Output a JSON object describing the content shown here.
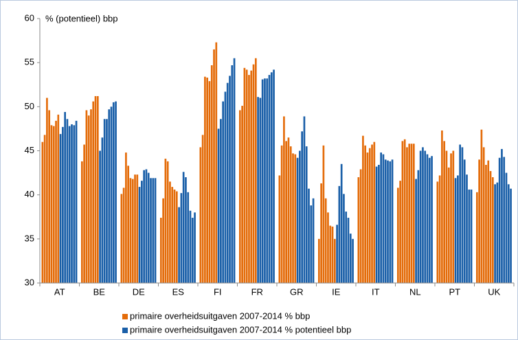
{
  "chart_data": {
    "type": "bar",
    "y_label": "% (potentieel) bbp",
    "categories": [
      "AT",
      "BE",
      "DE",
      "ES",
      "FI",
      "FR",
      "GR",
      "IE",
      "IT",
      "NL",
      "PT",
      "UK"
    ],
    "series": [
      {
        "name": "primaire overheidsuitgaven 2007-2014 % bbp",
        "color": "#e46c0a",
        "values": [
          [
            46.0,
            46.8,
            51.0,
            49.6,
            47.9,
            47.8,
            48.4,
            49.1
          ],
          [
            43.8,
            45.7,
            49.6,
            49.0,
            49.7,
            50.6,
            51.2,
            51.2
          ],
          [
            40.1,
            40.8,
            44.8,
            43.3,
            41.9,
            41.8,
            42.3,
            42.3
          ],
          [
            37.4,
            39.6,
            44.1,
            43.8,
            41.5,
            40.9,
            40.6,
            40.4
          ],
          [
            45.4,
            46.8,
            53.4,
            53.3,
            52.9,
            54.7,
            56.5,
            57.3
          ],
          [
            49.6,
            50.1,
            54.4,
            54.2,
            53.6,
            54.1,
            54.8,
            55.5
          ],
          [
            42.2,
            45.6,
            48.9,
            46.1,
            46.5,
            45.5,
            44.7,
            44.6
          ],
          [
            35.0,
            41.3,
            45.6,
            39.6,
            38.0,
            36.5,
            36.4,
            35.0
          ],
          [
            42.0,
            42.9,
            46.7,
            45.6,
            44.8,
            45.3,
            45.7,
            46.0
          ],
          [
            40.8,
            41.6,
            46.1,
            46.3,
            45.4,
            45.8,
            45.8,
            45.8
          ],
          [
            41.5,
            42.2,
            47.3,
            46.1,
            45.0,
            43.1,
            44.7,
            45.0
          ],
          [
            40.3,
            44.0,
            47.4,
            45.4,
            43.4,
            43.9,
            42.7,
            42.0
          ]
        ]
      },
      {
        "name": "primaire overheidsuitgaven 2007-2014 % potentieel bbp",
        "color": "#1a5fa8",
        "values": [
          [
            46.9,
            47.7,
            49.4,
            48.6,
            47.8,
            48.0,
            47.9,
            48.4
          ],
          [
            45.0,
            46.5,
            48.6,
            48.6,
            49.7,
            50.0,
            50.5,
            50.6
          ],
          [
            40.9,
            41.6,
            42.8,
            42.9,
            42.5,
            41.9,
            41.9,
            41.9
          ],
          [
            38.6,
            40.2,
            42.6,
            42.0,
            40.3,
            38.2,
            37.4,
            38.0
          ],
          [
            47.5,
            48.6,
            50.6,
            51.7,
            52.7,
            53.5,
            54.7,
            55.5
          ],
          [
            51.1,
            51.0,
            53.1,
            53.2,
            53.2,
            53.6,
            53.9,
            54.2
          ],
          [
            44.2,
            45.0,
            47.2,
            48.9,
            45.5,
            40.7,
            38.8,
            39.6
          ],
          [
            36.6,
            41.0,
            43.5,
            40.1,
            38.1,
            37.4,
            35.6,
            35.0
          ],
          [
            43.2,
            43.4,
            44.8,
            44.6,
            44.0,
            43.9,
            43.8,
            44.0
          ],
          [
            41.8,
            42.8,
            45.0,
            45.4,
            45.0,
            44.6,
            44.2,
            44.4
          ],
          [
            41.9,
            42.2,
            45.7,
            45.4,
            44.0,
            42.3,
            40.6,
            40.6
          ],
          [
            41.2,
            41.4,
            44.2,
            45.2,
            44.3,
            42.5,
            41.2,
            40.7
          ]
        ]
      }
    ],
    "ylim": [
      30,
      60
    ],
    "yticks": [
      30,
      35,
      40,
      45,
      50,
      55,
      60
    ],
    "grid": false
  }
}
